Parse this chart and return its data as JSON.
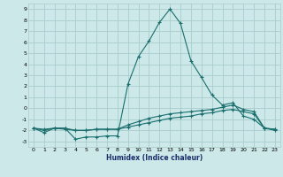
{
  "xlabel": "Humidex (Indice chaleur)",
  "bg_color": "#cce8e8",
  "grid_color": "#aacccc",
  "line_color": "#1a6e6e",
  "xlim": [
    -0.5,
    23.5
  ],
  "ylim": [
    -3.5,
    9.5
  ],
  "xticks": [
    0,
    1,
    2,
    3,
    4,
    5,
    6,
    7,
    8,
    9,
    10,
    11,
    12,
    13,
    14,
    15,
    16,
    17,
    18,
    19,
    20,
    21,
    22,
    23
  ],
  "yticks": [
    -3,
    -2,
    -1,
    0,
    1,
    2,
    3,
    4,
    5,
    6,
    7,
    8,
    9
  ],
  "series": [
    {
      "x": [
        0,
        1,
        2,
        3,
        4,
        5,
        6,
        7,
        8,
        9,
        10,
        11,
        12,
        13,
        14,
        15,
        16,
        17,
        18,
        19,
        20,
        21,
        22,
        23
      ],
      "y": [
        -1.8,
        -2.2,
        -1.8,
        -1.8,
        -2.8,
        -2.6,
        -2.6,
        -2.5,
        -2.5,
        2.2,
        4.7,
        6.1,
        7.8,
        9.0,
        7.7,
        4.3,
        2.8,
        1.2,
        0.3,
        0.5,
        -0.7,
        -1.0,
        -1.8,
        -2.0
      ]
    },
    {
      "x": [
        0,
        1,
        2,
        3,
        4,
        5,
        6,
        7,
        8,
        9,
        10,
        11,
        12,
        13,
        14,
        15,
        16,
        17,
        18,
        19,
        20,
        21,
        22,
        23
      ],
      "y": [
        -1.8,
        -2.0,
        -1.8,
        -1.8,
        -2.0,
        -2.0,
        -1.9,
        -1.9,
        -1.9,
        -1.5,
        -1.2,
        -0.9,
        -0.7,
        -0.5,
        -0.4,
        -0.3,
        -0.2,
        -0.1,
        0.1,
        0.3,
        -0.1,
        -0.3,
        -1.8,
        -1.9
      ]
    },
    {
      "x": [
        0,
        1,
        2,
        3,
        4,
        5,
        6,
        7,
        8,
        9,
        10,
        11,
        12,
        13,
        14,
        15,
        16,
        17,
        18,
        19,
        20,
        21,
        22,
        23
      ],
      "y": [
        -1.8,
        -1.9,
        -1.8,
        -1.9,
        -2.0,
        -2.0,
        -1.9,
        -1.9,
        -1.9,
        -1.7,
        -1.5,
        -1.3,
        -1.1,
        -0.9,
        -0.8,
        -0.7,
        -0.5,
        -0.4,
        -0.2,
        -0.1,
        -0.3,
        -0.5,
        -1.8,
        -1.9
      ]
    }
  ]
}
